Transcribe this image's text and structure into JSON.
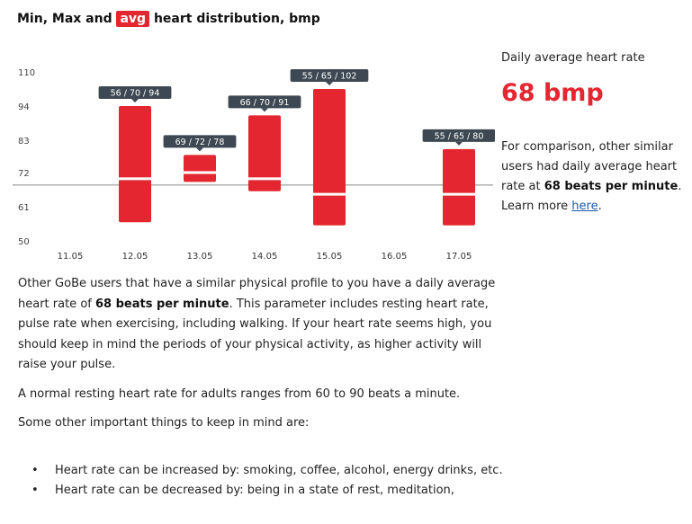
{
  "title": {
    "pre": "Min, Max and",
    "highlight": "avg",
    "post": "heart distribution, bmp"
  },
  "chart_data": {
    "type": "bar",
    "subtype": "range-with-marker",
    "title": "Min, Max and avg heart distribution, bmp",
    "categories": [
      "11.05",
      "12.05",
      "13.05",
      "14.05",
      "15.05",
      "16.05",
      "17.05"
    ],
    "series": [
      {
        "name": "min",
        "values": [
          null,
          56,
          69,
          66,
          55,
          null,
          55
        ]
      },
      {
        "name": "avg",
        "values": [
          null,
          70,
          72,
          70,
          65,
          null,
          65
        ]
      },
      {
        "name": "max",
        "values": [
          null,
          94,
          78,
          91,
          102,
          null,
          80
        ]
      }
    ],
    "labels": [
      null,
      "56 / 70 / 94",
      "69 / 72 / 78",
      "66 / 70 / 91",
      "55 / 65 / 102",
      null,
      "55 / 65 / 80"
    ],
    "yticks": [
      50,
      61,
      72,
      83,
      94,
      110
    ],
    "reference_line": 68,
    "ylim": [
      50,
      110
    ],
    "bar_color": "#e3262f",
    "label_color": "#3d4852",
    "grid": false
  },
  "side": {
    "caption": "Daily average heart rate",
    "value": "68 bmp",
    "comparison_pre": "For comparison, other similar users had daily average heart rate at",
    "comparison_bold": "68 beats per minute",
    "comparison_post": ".",
    "learn_pre": "Learn more",
    "learn_link": "here",
    "learn_post": "."
  },
  "body": {
    "p1_pre": "Other GoBe users that have a similar physical profile to you have a daily average heart rate of",
    "p1_bold": "68 beats per minute",
    "p1_post": ". This parameter includes resting heart rate, pulse rate when exercising, including walking. If your heart rate seems high, you should keep in mind the periods of your physical activity, as higher activity will raise your pulse.",
    "p2": "A normal resting heart rate for adults ranges from 60 to 90 beats a minute.",
    "p3": "Some other important things to keep in mind are:",
    "bullets": [
      "Heart rate can be increased by: smoking, coffee, alcohol, energy drinks, etc.",
      "Heart rate can be decreased by: being in a state of rest, meditation,"
    ]
  }
}
